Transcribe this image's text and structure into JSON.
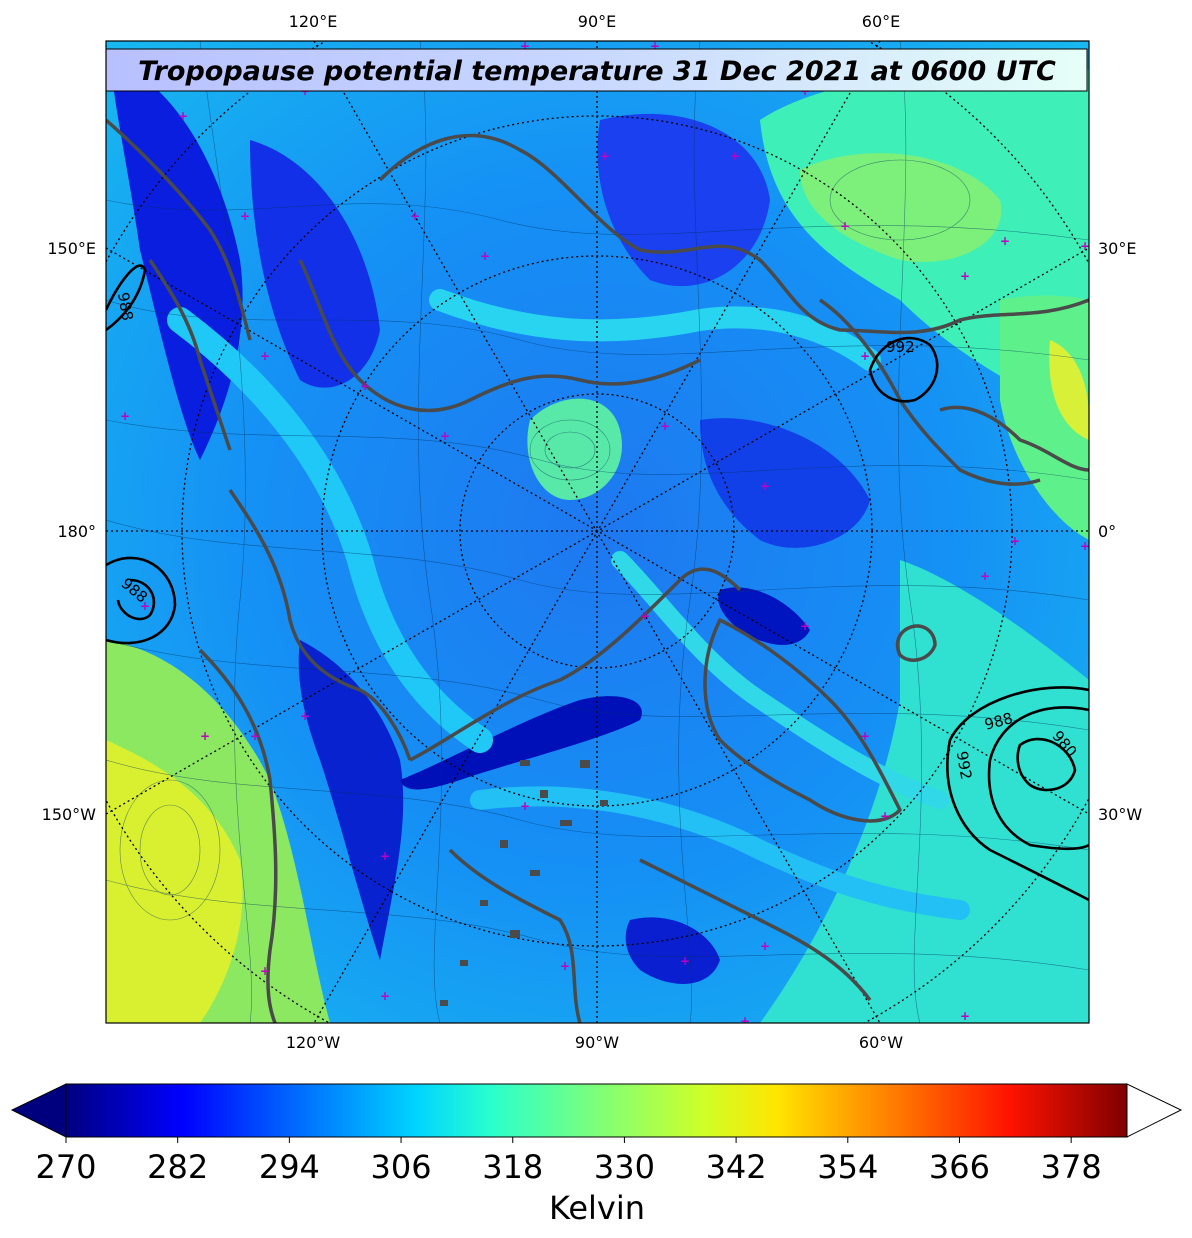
{
  "title": "Tropopause potential temperature 31 Dec 2021 at 0600 UTC",
  "lon_labels": {
    "top": [
      "120°E",
      "90°E",
      "60°E"
    ],
    "bottom": [
      "120°W",
      "90°W",
      "60°W"
    ],
    "left": [
      "150°E",
      "180°",
      "150°W"
    ],
    "right": [
      "30°E",
      "0°",
      "30°W"
    ]
  },
  "pressure_contours": [
    "988",
    "992",
    "988",
    "980",
    "992",
    "988"
  ],
  "colorbar": {
    "ticks": [
      "270",
      "282",
      "294",
      "306",
      "318",
      "330",
      "342",
      "354",
      "366",
      "378"
    ],
    "label": "Kelvin",
    "colors": [
      "#00007f",
      "#0000ff",
      "#007fff",
      "#00e4f8",
      "#29ffce",
      "#7dff7a",
      "#ceff29",
      "#ffe500",
      "#ff7c00",
      "#ff1200",
      "#7f0000"
    ]
  },
  "colors": {
    "land_outline": "#4a4a4a",
    "markers": "#c000c0",
    "title_bg_left": "#b0b0ff",
    "title_bg_right": "#e0ffff"
  }
}
